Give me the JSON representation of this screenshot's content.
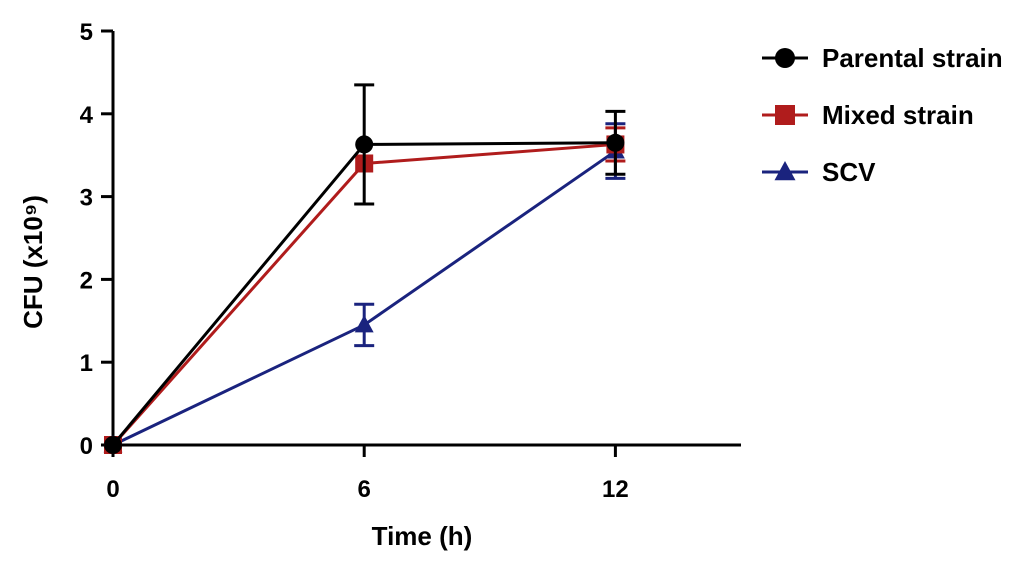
{
  "chart_data": {
    "type": "line",
    "title": "",
    "xlabel": "Time (h)",
    "ylabel": "CFU (x10⁹)",
    "x": [
      0,
      6,
      12
    ],
    "xticks": [
      0,
      6,
      12
    ],
    "xlim": [
      0,
      15
    ],
    "yticks": [
      0,
      1,
      2,
      3,
      4,
      5
    ],
    "ylim": [
      0,
      5
    ],
    "grid": false,
    "legend_position": "top-right",
    "series": [
      {
        "name": "Parental strain",
        "color": "#000000",
        "marker": "circle",
        "values": [
          0,
          3.63,
          3.65
        ],
        "errors": [
          0,
          0.72,
          0.38
        ]
      },
      {
        "name": "Mixed strain",
        "color": "#b01c1c",
        "marker": "square",
        "values": [
          0,
          3.4,
          3.63
        ],
        "errors": [
          0,
          0,
          0.2
        ]
      },
      {
        "name": "SCV",
        "color": "#1a237e",
        "marker": "triangle",
        "values": [
          0,
          1.45,
          3.55
        ],
        "errors": [
          0,
          0.25,
          0.33
        ]
      }
    ]
  }
}
